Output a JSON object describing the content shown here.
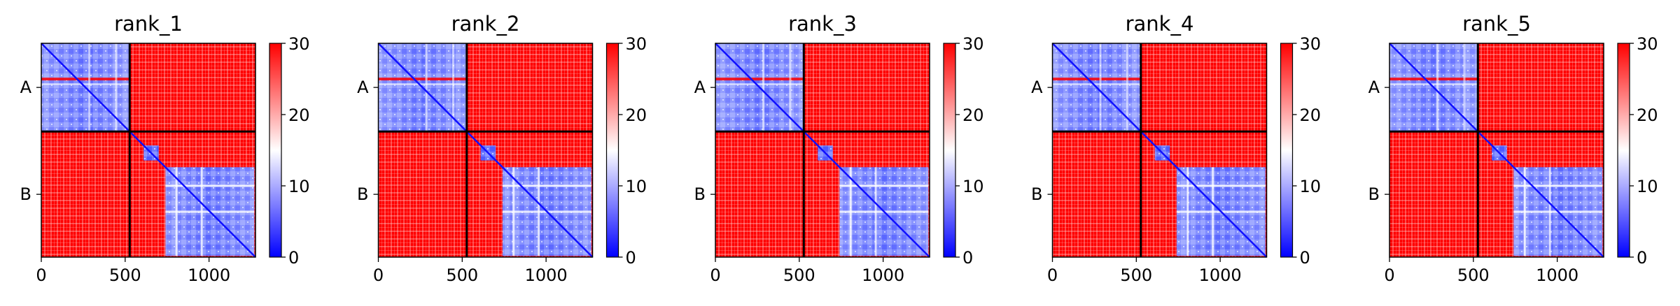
{
  "chart_data": [
    {
      "type": "heatmap",
      "title": "rank_1",
      "x_ticks": [
        0,
        500,
        1000
      ],
      "xlim": [
        0,
        1277
      ],
      "y_tick_labels": [
        "A",
        "B"
      ],
      "chain_boundary": 527,
      "colorbar": {
        "vmin": 0,
        "vmax": 30,
        "ticks": [
          0,
          10,
          20,
          30
        ]
      }
    },
    {
      "type": "heatmap",
      "title": "rank_2",
      "x_ticks": [
        0,
        500,
        1000
      ],
      "xlim": [
        0,
        1277
      ],
      "y_tick_labels": [
        "A",
        "B"
      ],
      "chain_boundary": 527,
      "colorbar": {
        "vmin": 0,
        "vmax": 30,
        "ticks": [
          0,
          10,
          20,
          30
        ]
      }
    },
    {
      "type": "heatmap",
      "title": "rank_3",
      "x_ticks": [
        0,
        500,
        1000
      ],
      "xlim": [
        0,
        1277
      ],
      "y_tick_labels": [
        "A",
        "B"
      ],
      "chain_boundary": 527,
      "colorbar": {
        "vmin": 0,
        "vmax": 30,
        "ticks": [
          0,
          10,
          20,
          30
        ]
      }
    },
    {
      "type": "heatmap",
      "title": "rank_4",
      "x_ticks": [
        0,
        500,
        1000
      ],
      "xlim": [
        0,
        1277
      ],
      "y_tick_labels": [
        "A",
        "B"
      ],
      "chain_boundary": 527,
      "colorbar": {
        "vmin": 0,
        "vmax": 30,
        "ticks": [
          0,
          10,
          20,
          30
        ]
      }
    },
    {
      "type": "heatmap",
      "title": "rank_5",
      "x_ticks": [
        0,
        500,
        1000
      ],
      "xlim": [
        0,
        1277
      ],
      "y_tick_labels": [
        "A",
        "B"
      ],
      "chain_boundary": 527,
      "colorbar": {
        "vmin": 0,
        "vmax": 30,
        "ticks": [
          0,
          10,
          20,
          30
        ]
      }
    }
  ],
  "colors": {
    "low": "#0000ff",
    "mid": "#ffffff",
    "high": "#ff0000",
    "boundary": "#000000"
  }
}
